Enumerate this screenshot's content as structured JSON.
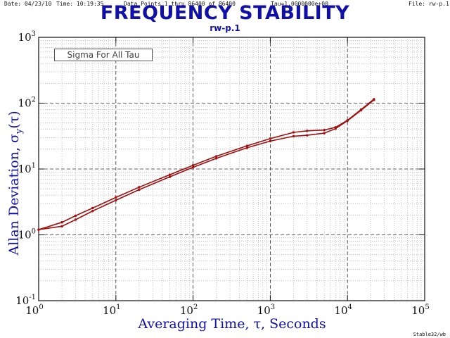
{
  "header": {
    "date": "Date: 04/23/10",
    "time": "Time: 10:19:35",
    "points": "Data Points 1 thru 86400 of 86400",
    "tau": "Tau=1.0000000e+00",
    "file": "File: rw-p.1"
  },
  "footer": "Stable32/wb",
  "colors": {
    "title": "#1010a8",
    "series": "#a01010"
  },
  "chart_data": {
    "type": "line",
    "title": "FREQUENCY STABILITY",
    "subtitle": "rw-p.1",
    "xlabel": "Averaging Time, τ, Seconds",
    "ylabel_main": "Allan Deviation, σ",
    "ylabel_sub": "y",
    "ylabel_tail": "(τ)",
    "xscale": "log",
    "yscale": "log",
    "xlim": [
      1,
      100000
    ],
    "ylim": [
      0.1,
      1000
    ],
    "x_ticks": [
      {
        "base": "10",
        "exp": "0"
      },
      {
        "base": "10",
        "exp": "1"
      },
      {
        "base": "10",
        "exp": "2"
      },
      {
        "base": "10",
        "exp": "3"
      },
      {
        "base": "10",
        "exp": "4"
      },
      {
        "base": "10",
        "exp": "5"
      }
    ],
    "y_ticks": [
      {
        "base": "10",
        "exp": "-1"
      },
      {
        "base": "10",
        "exp": "0"
      },
      {
        "base": "10",
        "exp": "1"
      },
      {
        "base": "10",
        "exp": "2"
      },
      {
        "base": "10",
        "exp": "3"
      }
    ],
    "grid": true,
    "annotation": "Sigma For All Tau",
    "series": [
      {
        "x": [
          1,
          2,
          3,
          5,
          10,
          20,
          50,
          100,
          200,
          500,
          1000,
          2000,
          3000,
          5000,
          7000,
          10000,
          15000,
          22000
        ],
        "y": [
          1.2,
          1.55,
          1.95,
          2.55,
          3.7,
          5.3,
          8.2,
          11.4,
          15.6,
          22.5,
          29.0,
          36.0,
          38.0,
          39.0,
          43.0,
          55.0,
          80.0,
          115.0
        ]
      },
      {
        "x": [
          1,
          2,
          3,
          5,
          10,
          20,
          50,
          100,
          200,
          500,
          1000,
          2000,
          3000,
          5000,
          7000,
          10000,
          15000,
          22000
        ],
        "y": [
          1.2,
          1.35,
          1.7,
          2.3,
          3.35,
          4.85,
          7.6,
          10.6,
          14.5,
          21.0,
          26.5,
          31.5,
          32.5,
          35.0,
          41.0,
          54.0,
          78.0,
          112.0
        ]
      }
    ]
  }
}
